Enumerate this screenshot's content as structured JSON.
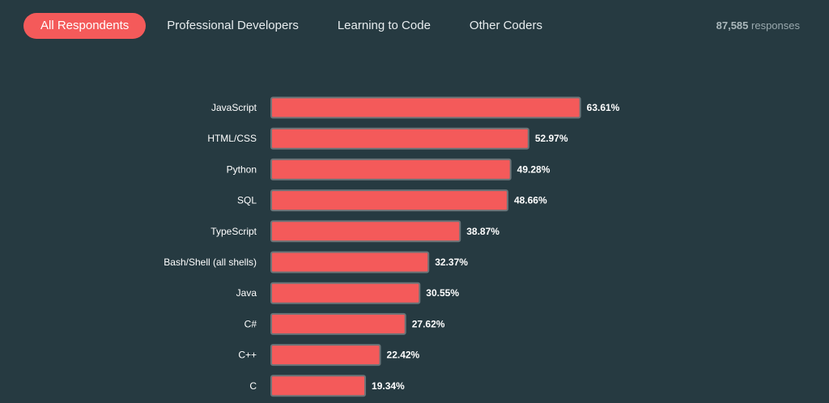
{
  "tabs": [
    {
      "label": "All Respondents",
      "active": true
    },
    {
      "label": "Professional Developers",
      "active": false
    },
    {
      "label": "Learning to Code",
      "active": false
    },
    {
      "label": "Other Coders",
      "active": false
    }
  ],
  "responses": {
    "count": "87,585",
    "suffix": "responses"
  },
  "colors": {
    "accent": "#f45a5a",
    "background": "#263a41"
  },
  "chart_data": {
    "type": "bar",
    "orientation": "horizontal",
    "categories": [
      "JavaScript",
      "HTML/CSS",
      "Python",
      "SQL",
      "TypeScript",
      "Bash/Shell (all shells)",
      "Java",
      "C#",
      "C++",
      "C"
    ],
    "values": [
      63.61,
      52.97,
      49.28,
      48.66,
      38.87,
      32.37,
      30.55,
      27.62,
      22.42,
      19.34
    ],
    "value_labels": [
      "63.61%",
      "52.97%",
      "49.28%",
      "48.66%",
      "38.87%",
      "32.37%",
      "30.55%",
      "27.62%",
      "22.42%",
      "19.34%"
    ],
    "xlim": [
      0,
      100
    ],
    "grid": false
  }
}
